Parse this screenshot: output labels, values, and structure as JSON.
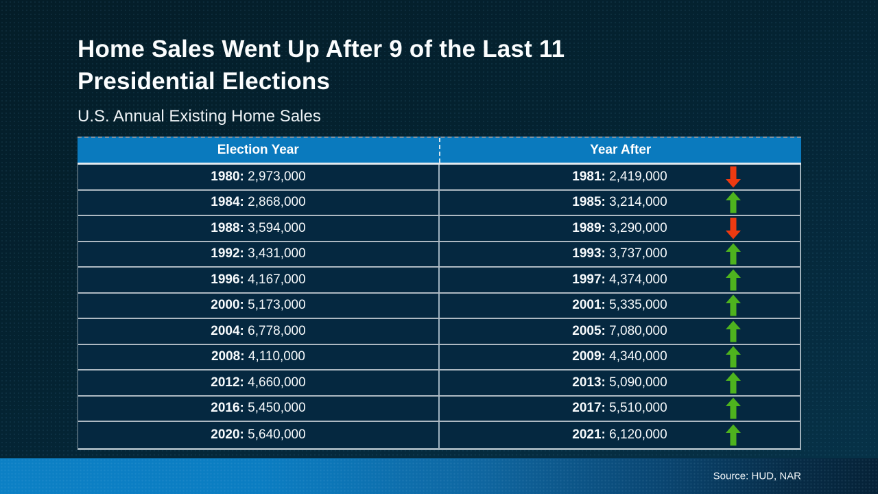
{
  "slide": {
    "title_line1": "Home Sales Went Up After 9 of the Last 11",
    "title_line2": "Presidential Elections",
    "subtitle": "U.S. Annual Existing Home Sales",
    "source": "Source: HUD, NAR"
  },
  "table": {
    "headers": [
      "Election Year",
      "Year After"
    ],
    "rows": [
      {
        "election_year": "1980:",
        "election_sales": "2,973,000",
        "after_year": "1981:",
        "after_sales": "2,419,000",
        "direction": "down"
      },
      {
        "election_year": "1984:",
        "election_sales": "2,868,000",
        "after_year": "1985:",
        "after_sales": "3,214,000",
        "direction": "up"
      },
      {
        "election_year": "1988:",
        "election_sales": "3,594,000",
        "after_year": "1989:",
        "after_sales": "3,290,000",
        "direction": "down"
      },
      {
        "election_year": "1992:",
        "election_sales": "3,431,000",
        "after_year": "1993:",
        "after_sales": "3,737,000",
        "direction": "up"
      },
      {
        "election_year": "1996:",
        "election_sales": "4,167,000",
        "after_year": "1997:",
        "after_sales": "4,374,000",
        "direction": "up"
      },
      {
        "election_year": "2000:",
        "election_sales": "5,173,000",
        "after_year": "2001:",
        "after_sales": "5,335,000",
        "direction": "up"
      },
      {
        "election_year": "2004:",
        "election_sales": "6,778,000",
        "after_year": "2005:",
        "after_sales": "7,080,000",
        "direction": "up"
      },
      {
        "election_year": "2008:",
        "election_sales": "4,110,000",
        "after_year": "2009:",
        "after_sales": "4,340,000",
        "direction": "up"
      },
      {
        "election_year": "2012:",
        "election_sales": "4,660,000",
        "after_year": "2013:",
        "after_sales": "5,090,000",
        "direction": "up"
      },
      {
        "election_year": "2016:",
        "election_sales": "5,450,000",
        "after_year": "2017:",
        "after_sales": "5,510,000",
        "direction": "up"
      },
      {
        "election_year": "2020:",
        "election_sales": "5,640,000",
        "after_year": "2021:",
        "after_sales": "6,120,000",
        "direction": "up"
      }
    ]
  },
  "colors": {
    "header_bg": "#0a7abe",
    "cell_bg": "#052840",
    "bar_blue": "#0c80c5",
    "up_arrow": "#4eb31e",
    "down_arrow": "#ee3a11"
  },
  "chart_data": {
    "type": "table",
    "title": "Home Sales Went Up After 9 of the Last 11 Presidential Elections",
    "subtitle": "U.S. Annual Existing Home Sales",
    "columns": [
      "Election Year",
      "Year After"
    ],
    "rows": [
      {
        "election_year": 1980,
        "election_year_sales": 2973000,
        "year_after": 1981,
        "year_after_sales": 2419000,
        "change": "down"
      },
      {
        "election_year": 1984,
        "election_year_sales": 2868000,
        "year_after": 1985,
        "year_after_sales": 3214000,
        "change": "up"
      },
      {
        "election_year": 1988,
        "election_year_sales": 3594000,
        "year_after": 1989,
        "year_after_sales": 3290000,
        "change": "down"
      },
      {
        "election_year": 1992,
        "election_year_sales": 3431000,
        "year_after": 1993,
        "year_after_sales": 3737000,
        "change": "up"
      },
      {
        "election_year": 1996,
        "election_year_sales": 4167000,
        "year_after": 1997,
        "year_after_sales": 4374000,
        "change": "up"
      },
      {
        "election_year": 2000,
        "election_year_sales": 5173000,
        "year_after": 2001,
        "year_after_sales": 5335000,
        "change": "up"
      },
      {
        "election_year": 2004,
        "election_year_sales": 6778000,
        "year_after": 2005,
        "year_after_sales": 7080000,
        "change": "up"
      },
      {
        "election_year": 2008,
        "election_year_sales": 4110000,
        "year_after": 2009,
        "year_after_sales": 4340000,
        "change": "up"
      },
      {
        "election_year": 2012,
        "election_year_sales": 4660000,
        "year_after": 2013,
        "year_after_sales": 5090000,
        "change": "up"
      },
      {
        "election_year": 2016,
        "election_year_sales": 5450000,
        "year_after": 2017,
        "year_after_sales": 5510000,
        "change": "up"
      },
      {
        "election_year": 2020,
        "election_year_sales": 5640000,
        "year_after": 2021,
        "year_after_sales": 6120000,
        "change": "up"
      }
    ],
    "source": "HUD, NAR"
  }
}
